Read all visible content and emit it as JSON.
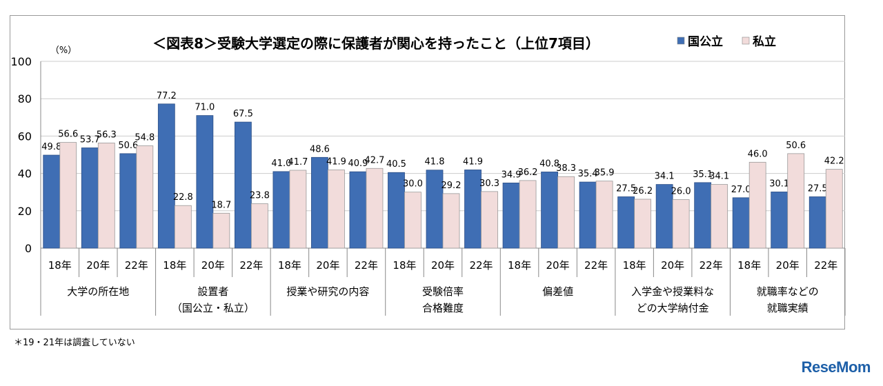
{
  "chart_data": {
    "type": "bar",
    "title": "＜図表8＞受験大学選定の際に保護者が関心を持ったこと（上位7項目）",
    "ylabel": "（%）",
    "ylim": [
      0,
      100
    ],
    "yticks": [
      0,
      20,
      40,
      60,
      80,
      100
    ],
    "grid": true,
    "legend_position": "top-right",
    "groups": [
      {
        "label": [
          "大学の所在地"
        ]
      },
      {
        "label": [
          "設置者",
          "（国公立・私立）"
        ]
      },
      {
        "label": [
          "授業や研究の内容"
        ]
      },
      {
        "label": [
          "受験倍率",
          "合格難度"
        ]
      },
      {
        "label": [
          "偏差値"
        ]
      },
      {
        "label": [
          "入学金や授業料な",
          "どの大学納付金"
        ]
      },
      {
        "label": [
          "就職率などの",
          "就職実績"
        ]
      }
    ],
    "years": [
      "18年",
      "20年",
      "22年"
    ],
    "series": [
      {
        "name": "国公立",
        "color": "#3f6eb4",
        "values": [
          49.8,
          53.7,
          50.6,
          77.2,
          71.0,
          67.5,
          41.0,
          48.6,
          40.9,
          40.5,
          41.8,
          41.9,
          34.9,
          40.8,
          35.4,
          27.5,
          34.1,
          35.1,
          27.0,
          30.1,
          27.5
        ]
      },
      {
        "name": "私立",
        "color": "#f2dcdb",
        "values": [
          56.6,
          56.3,
          54.8,
          22.8,
          18.7,
          23.8,
          41.7,
          41.9,
          42.7,
          30.0,
          29.2,
          30.3,
          36.2,
          38.3,
          35.9,
          26.2,
          26.0,
          34.1,
          46.0,
          50.6,
          42.2
        ]
      }
    ]
  },
  "footnote": "＊19・21年は調査していない",
  "logo": "ReseMom"
}
